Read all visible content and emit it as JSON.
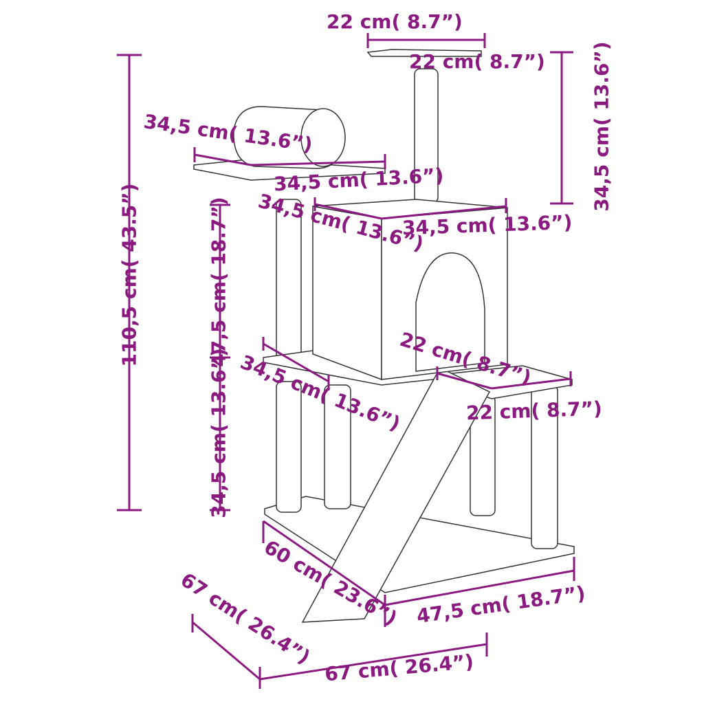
{
  "colors": {
    "dimension": "#8a1a80",
    "outline": "#333333"
  },
  "labels": [
    "22 cm( 8.7”)",
    "22 cm( 8.7”)",
    "34,5 cm( 13.6”)",
    "110,5 cm( 43.5”)",
    "34,5 cm( 13.6”)",
    "34,5 cm( 13.6”)",
    "34,5 cm( 13.6”)",
    "34,5 cm( 13.6”)",
    "47,5 cm( 18.7”)",
    "22 cm( 8.7”)",
    "34,5 cm( 13.6”)",
    "22 cm( 8.7”)",
    "34,5 cm( 13.6”)",
    "60 cm( 23.6”)",
    "47,5 cm( 18.7”)",
    "67 cm( 26.4”)",
    "67 cm( 26.4”)"
  ]
}
